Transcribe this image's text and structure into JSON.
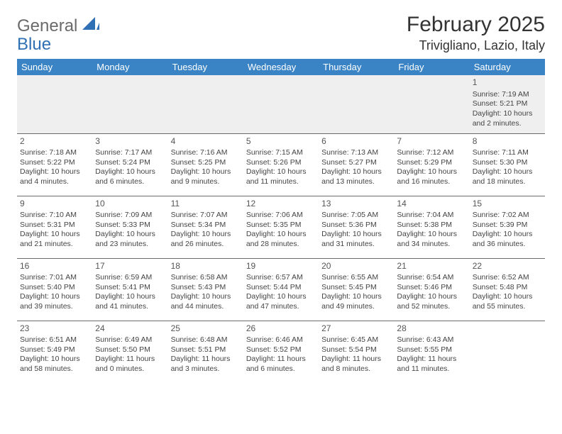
{
  "logo": {
    "word1": "General",
    "word2": "Blue"
  },
  "title": "February 2025",
  "location": "Trivigliano, Lazio, Italy",
  "colors": {
    "header_bg": "#3a84c6",
    "header_text": "#ffffff",
    "logo_gray": "#6a6a6a",
    "logo_blue": "#2f6fb3",
    "row_alt_bg": "#efefef",
    "border": "#6a6a6a"
  },
  "weekdays": [
    "Sunday",
    "Monday",
    "Tuesday",
    "Wednesday",
    "Thursday",
    "Friday",
    "Saturday"
  ],
  "weeks": [
    [
      null,
      null,
      null,
      null,
      null,
      null,
      {
        "n": "1",
        "sunrise": "7:19 AM",
        "sunset": "5:21 PM",
        "daylight": "10 hours and 2 minutes."
      }
    ],
    [
      {
        "n": "2",
        "sunrise": "7:18 AM",
        "sunset": "5:22 PM",
        "daylight": "10 hours and 4 minutes."
      },
      {
        "n": "3",
        "sunrise": "7:17 AM",
        "sunset": "5:24 PM",
        "daylight": "10 hours and 6 minutes."
      },
      {
        "n": "4",
        "sunrise": "7:16 AM",
        "sunset": "5:25 PM",
        "daylight": "10 hours and 9 minutes."
      },
      {
        "n": "5",
        "sunrise": "7:15 AM",
        "sunset": "5:26 PM",
        "daylight": "10 hours and 11 minutes."
      },
      {
        "n": "6",
        "sunrise": "7:13 AM",
        "sunset": "5:27 PM",
        "daylight": "10 hours and 13 minutes."
      },
      {
        "n": "7",
        "sunrise": "7:12 AM",
        "sunset": "5:29 PM",
        "daylight": "10 hours and 16 minutes."
      },
      {
        "n": "8",
        "sunrise": "7:11 AM",
        "sunset": "5:30 PM",
        "daylight": "10 hours and 18 minutes."
      }
    ],
    [
      {
        "n": "9",
        "sunrise": "7:10 AM",
        "sunset": "5:31 PM",
        "daylight": "10 hours and 21 minutes."
      },
      {
        "n": "10",
        "sunrise": "7:09 AM",
        "sunset": "5:33 PM",
        "daylight": "10 hours and 23 minutes."
      },
      {
        "n": "11",
        "sunrise": "7:07 AM",
        "sunset": "5:34 PM",
        "daylight": "10 hours and 26 minutes."
      },
      {
        "n": "12",
        "sunrise": "7:06 AM",
        "sunset": "5:35 PM",
        "daylight": "10 hours and 28 minutes."
      },
      {
        "n": "13",
        "sunrise": "7:05 AM",
        "sunset": "5:36 PM",
        "daylight": "10 hours and 31 minutes."
      },
      {
        "n": "14",
        "sunrise": "7:04 AM",
        "sunset": "5:38 PM",
        "daylight": "10 hours and 34 minutes."
      },
      {
        "n": "15",
        "sunrise": "7:02 AM",
        "sunset": "5:39 PM",
        "daylight": "10 hours and 36 minutes."
      }
    ],
    [
      {
        "n": "16",
        "sunrise": "7:01 AM",
        "sunset": "5:40 PM",
        "daylight": "10 hours and 39 minutes."
      },
      {
        "n": "17",
        "sunrise": "6:59 AM",
        "sunset": "5:41 PM",
        "daylight": "10 hours and 41 minutes."
      },
      {
        "n": "18",
        "sunrise": "6:58 AM",
        "sunset": "5:43 PM",
        "daylight": "10 hours and 44 minutes."
      },
      {
        "n": "19",
        "sunrise": "6:57 AM",
        "sunset": "5:44 PM",
        "daylight": "10 hours and 47 minutes."
      },
      {
        "n": "20",
        "sunrise": "6:55 AM",
        "sunset": "5:45 PM",
        "daylight": "10 hours and 49 minutes."
      },
      {
        "n": "21",
        "sunrise": "6:54 AM",
        "sunset": "5:46 PM",
        "daylight": "10 hours and 52 minutes."
      },
      {
        "n": "22",
        "sunrise": "6:52 AM",
        "sunset": "5:48 PM",
        "daylight": "10 hours and 55 minutes."
      }
    ],
    [
      {
        "n": "23",
        "sunrise": "6:51 AM",
        "sunset": "5:49 PM",
        "daylight": "10 hours and 58 minutes."
      },
      {
        "n": "24",
        "sunrise": "6:49 AM",
        "sunset": "5:50 PM",
        "daylight": "11 hours and 0 minutes."
      },
      {
        "n": "25",
        "sunrise": "6:48 AM",
        "sunset": "5:51 PM",
        "daylight": "11 hours and 3 minutes."
      },
      {
        "n": "26",
        "sunrise": "6:46 AM",
        "sunset": "5:52 PM",
        "daylight": "11 hours and 6 minutes."
      },
      {
        "n": "27",
        "sunrise": "6:45 AM",
        "sunset": "5:54 PM",
        "daylight": "11 hours and 8 minutes."
      },
      {
        "n": "28",
        "sunrise": "6:43 AM",
        "sunset": "5:55 PM",
        "daylight": "11 hours and 11 minutes."
      },
      null
    ]
  ],
  "labels": {
    "sunrise": "Sunrise:",
    "sunset": "Sunset:",
    "daylight": "Daylight:"
  }
}
